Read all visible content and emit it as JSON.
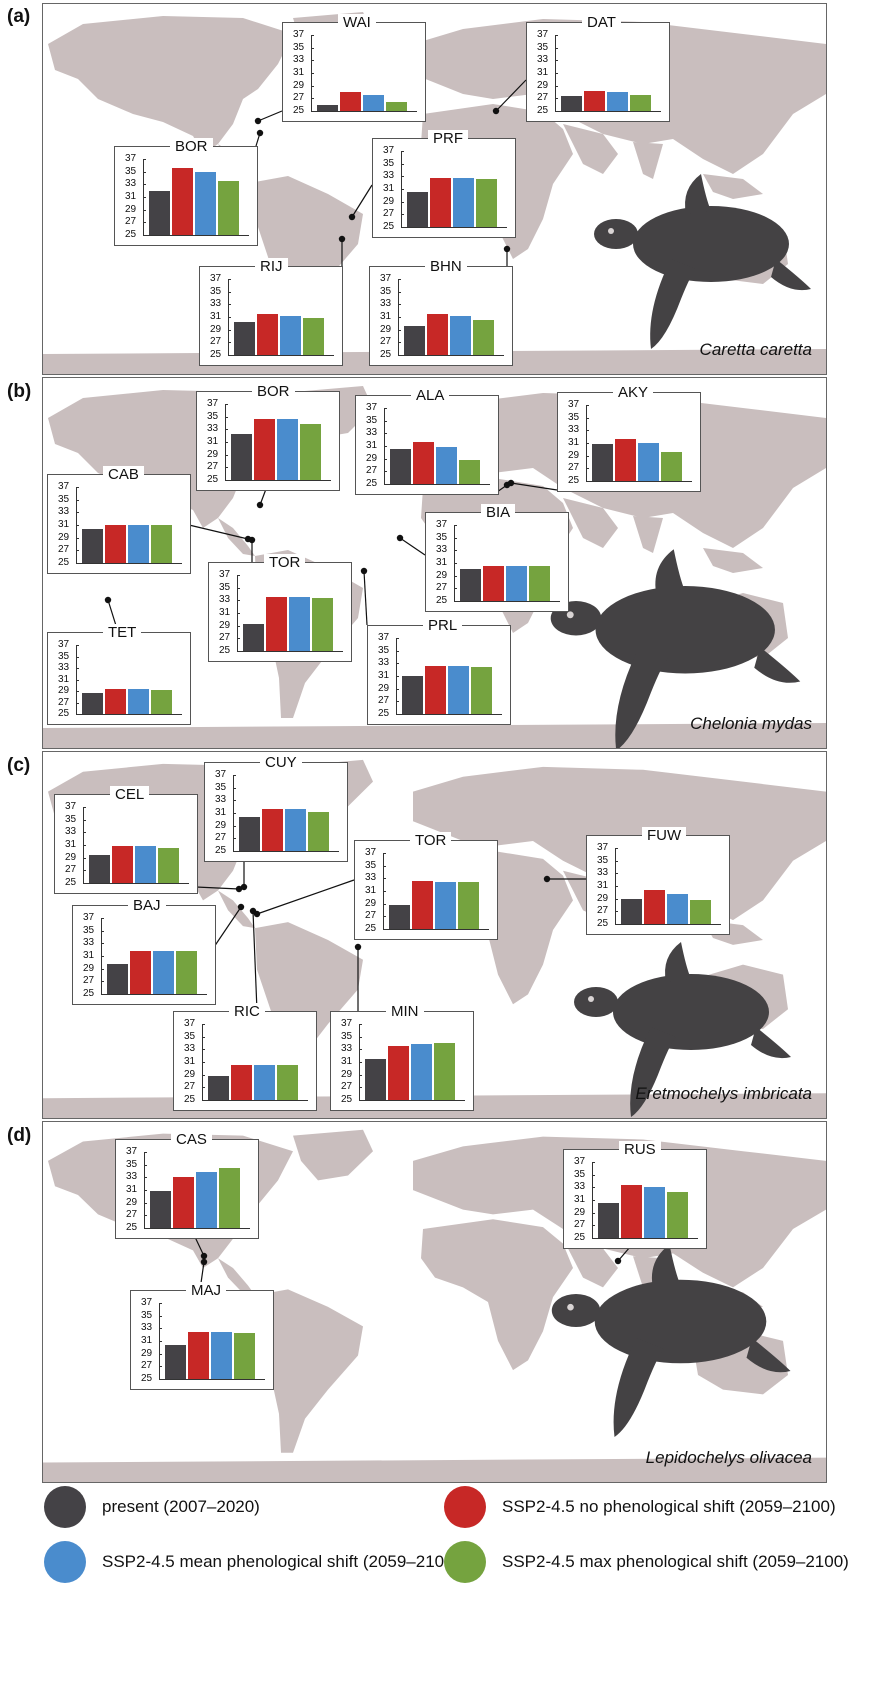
{
  "colors": {
    "present": "#444246",
    "no_shift": "#c72826",
    "mean_shift": "#4a8ccd",
    "max_shift": "#75a33f",
    "land": "#c9bebe",
    "turtle": "#444244"
  },
  "legend": [
    {
      "label": "present (2007–2020)",
      "color_key": "present",
      "icon": "dark-circle-icon"
    },
    {
      "label": "SSP2-4.5 no phenological shift (2059–2100)",
      "color_key": "no_shift",
      "icon": "red-circle-icon"
    },
    {
      "label": "SSP2-4.5 mean phenological shift (2059–2100)",
      "color_key": "mean_shift",
      "icon": "blue-circle-icon"
    },
    {
      "label": "SSP2-4.5 max phenological shift (2059–2100)",
      "color_key": "max_shift",
      "icon": "green-circle-icon"
    }
  ],
  "chart_data": {
    "type": "bar",
    "series_names": [
      "present (2007–2020)",
      "SSP2-4.5 no phenological shift (2059–2100)",
      "SSP2-4.5 mean phenological shift (2059–2100)",
      "SSP2-4.5 max phenological shift (2059–2100)"
    ],
    "yticks": [
      "37",
      "35",
      "33",
      "31",
      "29",
      "27",
      "25"
    ],
    "ylim": [
      25,
      37
    ],
    "panels": [
      {
        "letter": "(a)",
        "species": "Caretta caretta",
        "sites": [
          {
            "name": "WAI",
            "values": [
              26.0,
              28.0,
              27.6,
              26.4
            ]
          },
          {
            "name": "DAT",
            "values": [
              27.4,
              28.2,
              28.0,
              27.6
            ]
          },
          {
            "name": "BOR",
            "values": [
              32.0,
              35.6,
              35.0,
              33.6
            ]
          },
          {
            "name": "PRF",
            "values": [
              30.6,
              32.8,
              32.8,
              32.6
            ]
          },
          {
            "name": "RIJ",
            "values": [
              30.2,
              31.4,
              31.2,
              30.8
            ]
          },
          {
            "name": "BHN",
            "values": [
              29.6,
              31.4,
              31.2,
              30.6
            ]
          }
        ]
      },
      {
        "letter": "(b)",
        "species": "Chelonia mydas",
        "sites": [
          {
            "name": "BOR",
            "values": [
              32.2,
              34.6,
              34.6,
              33.8
            ]
          },
          {
            "name": "ALA",
            "values": [
              30.6,
              31.6,
              30.8,
              28.8
            ]
          },
          {
            "name": "AKY",
            "values": [
              30.8,
              31.6,
              31.0,
              29.6
            ]
          },
          {
            "name": "CAB",
            "values": [
              30.4,
              31.0,
              31.0,
              31.0
            ]
          },
          {
            "name": "BIA",
            "values": [
              30.0,
              30.6,
              30.6,
              30.6
            ]
          },
          {
            "name": "TOR",
            "values": [
              29.2,
              33.6,
              33.6,
              33.4
            ]
          },
          {
            "name": "TET",
            "values": [
              28.6,
              29.4,
              29.4,
              29.2
            ]
          },
          {
            "name": "PRL",
            "values": [
              31.0,
              32.6,
              32.6,
              32.4
            ]
          }
        ]
      },
      {
        "letter": "(c)",
        "species": "Eretmochelys imbricata",
        "sites": [
          {
            "name": "CUY",
            "values": [
              30.4,
              31.6,
              31.6,
              31.2
            ]
          },
          {
            "name": "CEL",
            "values": [
              29.4,
              30.8,
              30.8,
              30.6
            ]
          },
          {
            "name": "TOR",
            "values": [
              28.8,
              32.6,
              32.4,
              32.4
            ]
          },
          {
            "name": "FUW",
            "values": [
              29.0,
              30.4,
              29.8,
              28.8
            ]
          },
          {
            "name": "BAJ",
            "values": [
              29.8,
              31.8,
              31.8,
              31.8
            ]
          },
          {
            "name": "RIC",
            "values": [
              28.8,
              30.6,
              30.6,
              30.6
            ]
          },
          {
            "name": "MIN",
            "values": [
              31.4,
              33.6,
              33.8,
              34.0
            ]
          }
        ]
      },
      {
        "letter": "(d)",
        "species": "Lepidochelys olivacea",
        "sites": [
          {
            "name": "CAS",
            "values": [
              30.8,
              33.0,
              33.8,
              34.4
            ]
          },
          {
            "name": "RUS",
            "values": [
              30.6,
              33.4,
              33.0,
              32.2
            ]
          },
          {
            "name": "MAJ",
            "values": [
              30.4,
              32.4,
              32.4,
              32.2
            ]
          }
        ]
      }
    ]
  }
}
